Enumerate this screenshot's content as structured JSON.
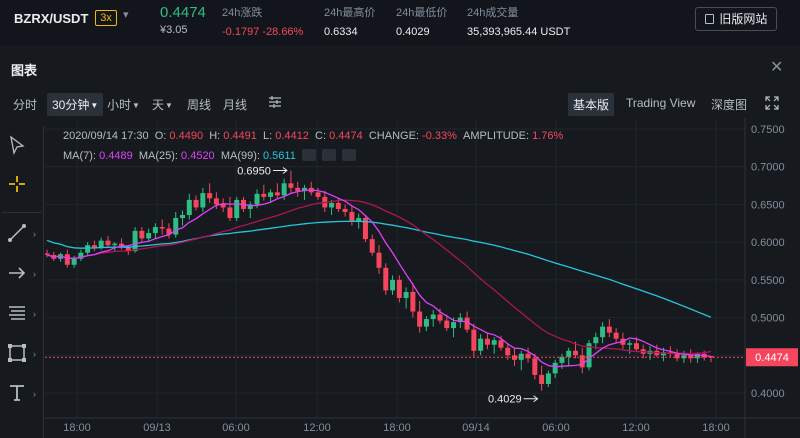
{
  "header": {
    "pair": "BZRX/USDT",
    "leverage": "3x",
    "favorite_icon": "caret-down-icon",
    "last_price": "0.4474",
    "last_price_usd": "¥3.05",
    "stats": [
      {
        "label": "24h涨跌",
        "value": "-0.1797 -28.66%",
        "negative": true
      },
      {
        "label": "24h最高价",
        "value": "0.6334",
        "negative": false
      },
      {
        "label": "24h最低价",
        "value": "0.4029",
        "negative": false
      },
      {
        "label": "24h成交量",
        "value": "35,393,965.44 USDT",
        "negative": false
      }
    ],
    "old_site_label": "旧版网站"
  },
  "panel": {
    "title": "图表",
    "close_icon": "close-icon"
  },
  "toolbar": {
    "intervals": [
      "分时",
      "30分钟",
      "小时",
      "天",
      "周线",
      "月线"
    ],
    "active_interval": "30分钟",
    "indicator_icon": "indicators-icon",
    "views": [
      "基本版",
      "Trading View",
      "深度图"
    ],
    "active_view": "基本版",
    "fullscreen_icon": "fullscreen-icon"
  },
  "left_tools": [
    "cursor-icon",
    "crosshair-icon",
    "trendline-icon",
    "arrow-icon",
    "fib-icon",
    "shape-icon",
    "text-icon"
  ],
  "legend": {
    "ohlc": "2020/09/14 17:30  O: 0.4490  H: 0.4491  L: 0.4412  C: 0.4474  CHANGE: -0.33%  AMPLITUDE: 1.76%",
    "ohlc_parts": {
      "date": "2020/09/14 17:30",
      "o": "0.4490",
      "h": "0.4491",
      "l": "0.4412",
      "c": "0.4474",
      "change": "-0.33%",
      "amplitude": "1.76%"
    },
    "ma7_label": "MA(7):",
    "ma7": "0.4489",
    "ma25_label": "MA(25):",
    "ma25": "0.4520",
    "ma99_label": "MA(99):",
    "ma99": "0.5611"
  },
  "colors": {
    "up": "#2ebd85",
    "down": "#f6465d",
    "ma7": "#e040fb",
    "ma25": "#ad1457",
    "ma99": "#26c6da",
    "accent": "#f0b90b"
  },
  "chart_data": {
    "type": "candlestick",
    "y_ticks": [
      "0.7500",
      "0.7000",
      "0.6500",
      "0.6000",
      "0.5500",
      "0.5000",
      "0.4500",
      "0.4000"
    ],
    "y_range": [
      0.39,
      0.755
    ],
    "x_ticks": [
      "18:00",
      "09/13",
      "06:00",
      "12:00",
      "18:00",
      "09/14",
      "06:00",
      "12:00",
      "18:00"
    ],
    "last_price_label": "0.4474",
    "high_annotation": "0.6950",
    "low_annotation": "0.4029",
    "candles_ohlc": [
      [
        0.585,
        0.59,
        0.58,
        0.583
      ],
      [
        0.583,
        0.587,
        0.575,
        0.578
      ],
      [
        0.578,
        0.586,
        0.574,
        0.584
      ],
      [
        0.584,
        0.59,
        0.566,
        0.57
      ],
      [
        0.57,
        0.582,
        0.566,
        0.578
      ],
      [
        0.578,
        0.59,
        0.575,
        0.586
      ],
      [
        0.586,
        0.6,
        0.583,
        0.596
      ],
      [
        0.596,
        0.602,
        0.588,
        0.592
      ],
      [
        0.592,
        0.606,
        0.59,
        0.602
      ],
      [
        0.602,
        0.608,
        0.592,
        0.596
      ],
      [
        0.596,
        0.6,
        0.588,
        0.598
      ],
      [
        0.598,
        0.605,
        0.59,
        0.594
      ],
      [
        0.594,
        0.596,
        0.583,
        0.588
      ],
      [
        0.588,
        0.62,
        0.586,
        0.615
      ],
      [
        0.615,
        0.62,
        0.6,
        0.605
      ],
      [
        0.605,
        0.618,
        0.6,
        0.612
      ],
      [
        0.612,
        0.625,
        0.605,
        0.62
      ],
      [
        0.62,
        0.63,
        0.61,
        0.618
      ],
      [
        0.618,
        0.625,
        0.605,
        0.61
      ],
      [
        0.61,
        0.64,
        0.606,
        0.632
      ],
      [
        0.632,
        0.642,
        0.622,
        0.636
      ],
      [
        0.636,
        0.664,
        0.63,
        0.656
      ],
      [
        0.656,
        0.662,
        0.642,
        0.646
      ],
      [
        0.646,
        0.672,
        0.64,
        0.665
      ],
      [
        0.665,
        0.678,
        0.652,
        0.658
      ],
      [
        0.658,
        0.666,
        0.644,
        0.65
      ],
      [
        0.65,
        0.658,
        0.64,
        0.646
      ],
      [
        0.646,
        0.66,
        0.628,
        0.632
      ],
      [
        0.632,
        0.66,
        0.628,
        0.656
      ],
      [
        0.656,
        0.66,
        0.64,
        0.644
      ],
      [
        0.644,
        0.654,
        0.632,
        0.65
      ],
      [
        0.65,
        0.67,
        0.645,
        0.664
      ],
      [
        0.664,
        0.676,
        0.655,
        0.66
      ],
      [
        0.66,
        0.67,
        0.652,
        0.666
      ],
      [
        0.666,
        0.678,
        0.658,
        0.662
      ],
      [
        0.662,
        0.684,
        0.656,
        0.678
      ],
      [
        0.678,
        0.695,
        0.665,
        0.672
      ],
      [
        0.672,
        0.68,
        0.66,
        0.668
      ],
      [
        0.668,
        0.676,
        0.656,
        0.672
      ],
      [
        0.672,
        0.68,
        0.662,
        0.666
      ],
      [
        0.666,
        0.672,
        0.656,
        0.66
      ],
      [
        0.66,
        0.668,
        0.64,
        0.646
      ],
      [
        0.646,
        0.656,
        0.636,
        0.652
      ],
      [
        0.652,
        0.658,
        0.64,
        0.644
      ],
      [
        0.644,
        0.65,
        0.634,
        0.64
      ],
      [
        0.64,
        0.648,
        0.622,
        0.628
      ],
      [
        0.628,
        0.638,
        0.618,
        0.632
      ],
      [
        0.632,
        0.636,
        0.6,
        0.604
      ],
      [
        0.604,
        0.61,
        0.582,
        0.586
      ],
      [
        0.586,
        0.596,
        0.558,
        0.566
      ],
      [
        0.566,
        0.572,
        0.53,
        0.536
      ],
      [
        0.536,
        0.556,
        0.53,
        0.55
      ],
      [
        0.55,
        0.556,
        0.52,
        0.526
      ],
      [
        0.526,
        0.54,
        0.512,
        0.534
      ],
      [
        0.534,
        0.546,
        0.5,
        0.508
      ],
      [
        0.508,
        0.522,
        0.48,
        0.488
      ],
      [
        0.488,
        0.502,
        0.482,
        0.498
      ],
      [
        0.498,
        0.51,
        0.488,
        0.504
      ],
      [
        0.504,
        0.512,
        0.492,
        0.496
      ],
      [
        0.496,
        0.504,
        0.482,
        0.486
      ],
      [
        0.486,
        0.5,
        0.474,
        0.494
      ],
      [
        0.494,
        0.506,
        0.486,
        0.5
      ],
      [
        0.5,
        0.508,
        0.48,
        0.484
      ],
      [
        0.484,
        0.492,
        0.448,
        0.456
      ],
      [
        0.456,
        0.478,
        0.45,
        0.472
      ],
      [
        0.472,
        0.48,
        0.458,
        0.464
      ],
      [
        0.464,
        0.474,
        0.452,
        0.47
      ],
      [
        0.47,
        0.476,
        0.456,
        0.46
      ],
      [
        0.46,
        0.466,
        0.444,
        0.45
      ],
      [
        0.45,
        0.46,
        0.436,
        0.444
      ],
      [
        0.444,
        0.456,
        0.43,
        0.452
      ],
      [
        0.452,
        0.46,
        0.44,
        0.446
      ],
      [
        0.446,
        0.452,
        0.418,
        0.424
      ],
      [
        0.424,
        0.436,
        0.403,
        0.412
      ],
      [
        0.412,
        0.43,
        0.408,
        0.426
      ],
      [
        0.426,
        0.444,
        0.42,
        0.44
      ],
      [
        0.44,
        0.452,
        0.432,
        0.448
      ],
      [
        0.448,
        0.46,
        0.436,
        0.456
      ],
      [
        0.456,
        0.468,
        0.446,
        0.45
      ],
      [
        0.45,
        0.46,
        0.426,
        0.434
      ],
      [
        0.434,
        0.47,
        0.43,
        0.466
      ],
      [
        0.466,
        0.48,
        0.458,
        0.474
      ],
      [
        0.474,
        0.494,
        0.466,
        0.488
      ],
      [
        0.488,
        0.498,
        0.474,
        0.48
      ],
      [
        0.48,
        0.486,
        0.466,
        0.472
      ],
      [
        0.472,
        0.48,
        0.458,
        0.464
      ],
      [
        0.464,
        0.47,
        0.452,
        0.466
      ],
      [
        0.466,
        0.474,
        0.456,
        0.458
      ],
      [
        0.458,
        0.464,
        0.446,
        0.452
      ],
      [
        0.452,
        0.462,
        0.444,
        0.456
      ],
      [
        0.456,
        0.464,
        0.448,
        0.45
      ],
      [
        0.45,
        0.46,
        0.442,
        0.454
      ],
      [
        0.454,
        0.462,
        0.448,
        0.452
      ],
      [
        0.452,
        0.458,
        0.442,
        0.446
      ],
      [
        0.446,
        0.456,
        0.44,
        0.45
      ],
      [
        0.45,
        0.458,
        0.44,
        0.446
      ],
      [
        0.446,
        0.454,
        0.44,
        0.452
      ],
      [
        0.452,
        0.456,
        0.443,
        0.447
      ],
      [
        0.449,
        0.449,
        0.441,
        0.447
      ]
    ]
  }
}
